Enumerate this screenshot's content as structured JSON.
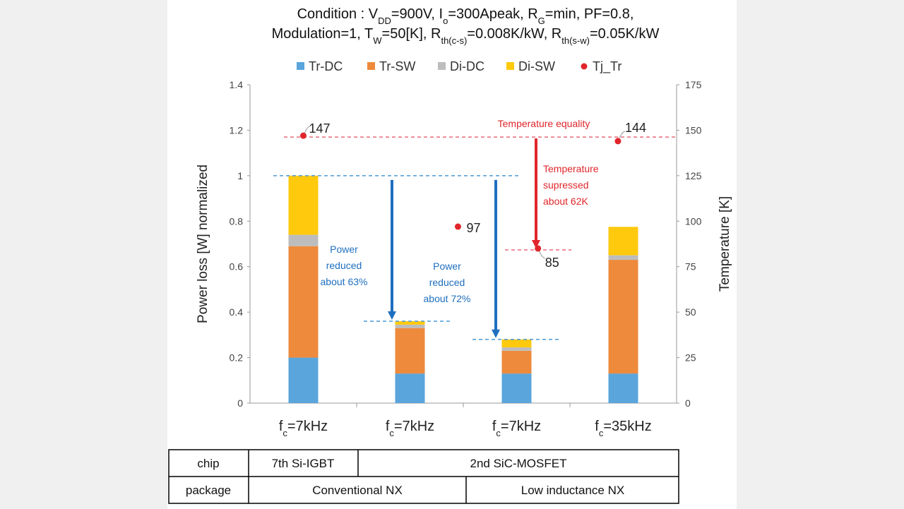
{
  "condition": {
    "line1": [
      {
        "t": "Condition : V"
      },
      {
        "t": "DD",
        "sub": true
      },
      {
        "t": "=900V, I"
      },
      {
        "t": "o",
        "sub": true
      },
      {
        "t": "=300Apeak, R"
      },
      {
        "t": "G",
        "sub": true
      },
      {
        "t": "=min, PF=0.8,"
      }
    ],
    "line2": [
      {
        "t": "Modulation=1, T"
      },
      {
        "t": "W",
        "sub": true
      },
      {
        "t": "=50[K], R"
      },
      {
        "t": "th(c-s)",
        "sub": true
      },
      {
        "t": "=0.008K/kW, R"
      },
      {
        "t": "th(s-w)",
        "sub": true
      },
      {
        "t": "=0.05K/kW"
      }
    ]
  },
  "chart_data": {
    "type": "bar",
    "stacked": true,
    "categories": [
      {
        "main": "f",
        "sub": "c",
        "rest": "=7kHz",
        "color": "#222222"
      },
      {
        "main": "f",
        "sub": "c",
        "rest": "=7kHz",
        "color": "#222222"
      },
      {
        "main": "f",
        "sub": "c",
        "rest": "=7kHz",
        "color": "#222222"
      },
      {
        "main": "f",
        "sub": "c",
        "rest": "=35kHz",
        "color": "#e0262b"
      }
    ],
    "series": [
      {
        "name": "Tr-DC",
        "color": "#5aa5dc",
        "values": [
          0.2,
          0.13,
          0.13,
          0.13
        ]
      },
      {
        "name": "Tr-SW",
        "color": "#ee8a3c",
        "values": [
          0.49,
          0.2,
          0.1,
          0.5
        ]
      },
      {
        "name": "Di-DC",
        "color": "#bdbdbd",
        "values": [
          0.05,
          0.015,
          0.015,
          0.02
        ]
      },
      {
        "name": "Di-SW",
        "color": "#ffc90e",
        "values": [
          0.26,
          0.015,
          0.035,
          0.125
        ]
      }
    ],
    "temperature": {
      "name": "Tj_Tr",
      "color": "#e0262b",
      "points": [
        {
          "x": 0,
          "value": 147,
          "label": "147"
        },
        {
          "x": 1.45,
          "value": 97,
          "label": "97"
        },
        {
          "x": 2.2,
          "value": 85,
          "label": "85"
        },
        {
          "x": 2.95,
          "value": 144,
          "label": "144"
        }
      ]
    },
    "y_left": {
      "label": "Power loss [W] normalized",
      "ticks": [
        "0",
        "0.2",
        "0.4",
        "0.6",
        "0.8",
        "1",
        "1.2",
        "1.4"
      ],
      "range": [
        0,
        1.4
      ]
    },
    "y_right": {
      "label": "Temperature [K]",
      "ticks": [
        "0",
        "25",
        "50",
        "75",
        "100",
        "125",
        "150",
        "175"
      ],
      "range": [
        0,
        175
      ]
    },
    "legend_position": "top"
  },
  "annotations": {
    "temp_equality": "Temperature equality",
    "temp_suppressed": [
      "Temperature",
      "supressed",
      "about 62K"
    ],
    "power_reduced_63": [
      "Power",
      "reduced",
      "about 63%"
    ],
    "power_reduced_72": [
      "Power",
      "reduced",
      "about 72%"
    ],
    "blue_color": "#1f6fbf",
    "red_color": "#e0262b"
  },
  "table": {
    "chip_header": "chip",
    "chip_values": [
      "7th Si-IGBT",
      "2nd SiC-MOSFET"
    ],
    "package_header": "package",
    "package_values": [
      "Conventional NX",
      "Low inductance NX"
    ]
  }
}
